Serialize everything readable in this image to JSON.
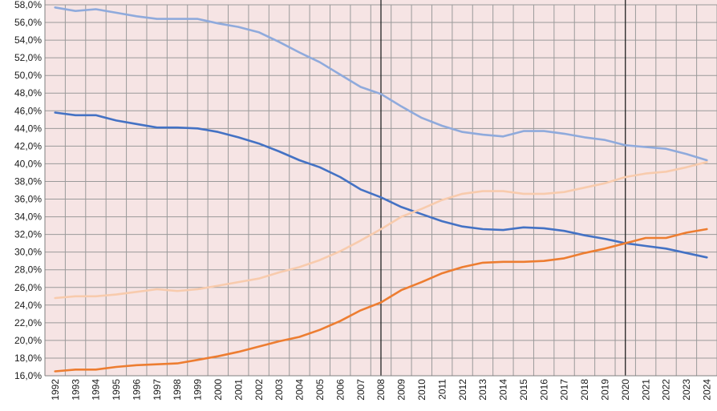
{
  "colors": {
    "background": "#f6e4e4",
    "grid": "#9a9a9a",
    "axis": "#7f7f7f",
    "marker": "#222222"
  },
  "chart_data": {
    "type": "line",
    "title": "",
    "xlabel": "",
    "ylabel": "",
    "ylim": [
      16,
      58
    ],
    "y_ticks": [
      "16,0%",
      "18,0%",
      "20,0%",
      "22,0%",
      "24,0%",
      "26,0%",
      "28,0%",
      "30,0%",
      "32,0%",
      "34,0%",
      "36,0%",
      "38,0%",
      "40,0%",
      "42,0%",
      "44,0%",
      "46,0%",
      "48,0%",
      "50,0%",
      "52,0%",
      "54,0%",
      "56,0%",
      "58,0%"
    ],
    "x": [
      "1992",
      "1993",
      "1994",
      "1995",
      "1996",
      "1997",
      "1998",
      "1999",
      "2000",
      "2001",
      "2002",
      "2003",
      "2004",
      "2005",
      "2006",
      "2007",
      "2008",
      "2009",
      "2010",
      "2011",
      "2012",
      "2013",
      "2014",
      "2015",
      "2016",
      "2017",
      "2018",
      "2019",
      "2020",
      "2021",
      "2022",
      "2023",
      "2024"
    ],
    "grid": true,
    "vertical_markers": [
      "2008",
      "2020"
    ],
    "series": [
      {
        "color": "#8faadc",
        "values": [
          57.7,
          57.3,
          57.5,
          57.1,
          56.7,
          56.4,
          56.4,
          56.4,
          55.9,
          55.5,
          54.9,
          53.8,
          52.6,
          51.5,
          50.1,
          48.7,
          47.9,
          46.5,
          45.2,
          44.3,
          43.6,
          43.3,
          43.1,
          43.7,
          43.7,
          43.4,
          43.0,
          42.7,
          42.1,
          41.9,
          41.7,
          41.1,
          40.4
        ]
      },
      {
        "color": "#4472c4",
        "values": [
          45.8,
          45.5,
          45.5,
          44.9,
          44.5,
          44.1,
          44.1,
          44.0,
          43.6,
          43.0,
          42.3,
          41.4,
          40.4,
          39.6,
          38.5,
          37.1,
          36.2,
          35.1,
          34.3,
          33.5,
          32.9,
          32.6,
          32.5,
          32.8,
          32.7,
          32.4,
          31.9,
          31.5,
          31.0,
          30.7,
          30.4,
          29.9,
          29.4
        ]
      },
      {
        "color": "#f8cbad",
        "values": [
          24.8,
          25.0,
          25.0,
          25.2,
          25.5,
          25.8,
          25.6,
          25.8,
          26.2,
          26.6,
          27.0,
          27.7,
          28.3,
          29.1,
          30.1,
          31.3,
          32.6,
          34.0,
          34.9,
          35.9,
          36.6,
          36.9,
          36.9,
          36.6,
          36.6,
          36.8,
          37.3,
          37.8,
          38.5,
          38.9,
          39.1,
          39.6,
          40.2
        ]
      },
      {
        "color": "#ed7d31",
        "values": [
          16.5,
          16.7,
          16.7,
          17.0,
          17.2,
          17.3,
          17.4,
          17.8,
          18.2,
          18.7,
          19.3,
          19.9,
          20.4,
          21.2,
          22.2,
          23.4,
          24.3,
          25.7,
          26.6,
          27.6,
          28.3,
          28.8,
          28.9,
          28.9,
          29.0,
          29.3,
          29.9,
          30.4,
          31.0,
          31.6,
          31.6,
          32.2,
          32.6
        ]
      }
    ]
  }
}
